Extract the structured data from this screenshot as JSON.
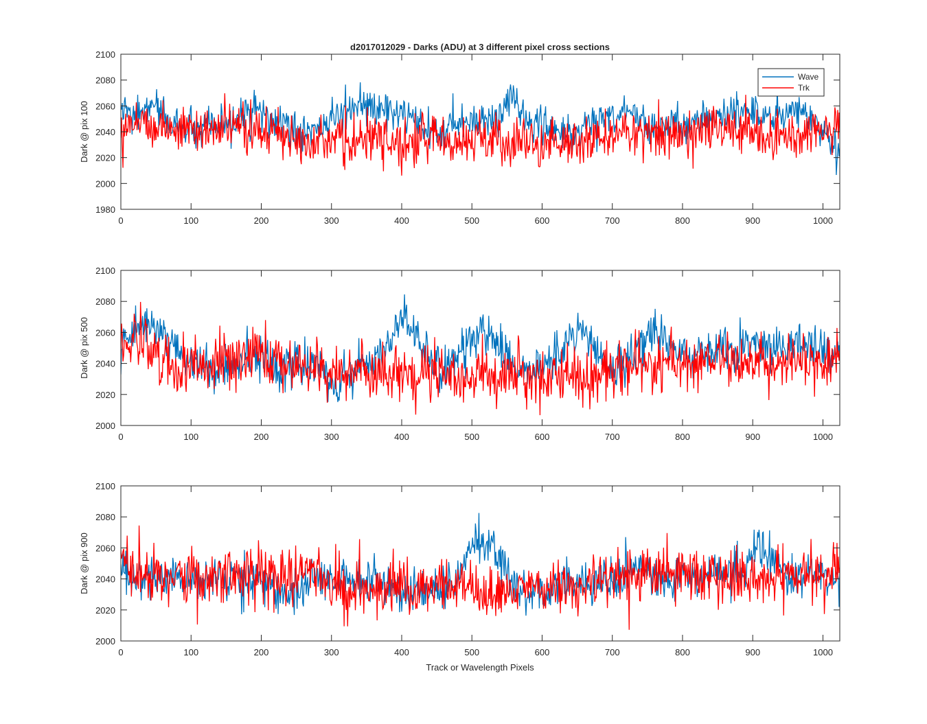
{
  "colors": {
    "wave": "#0072BD",
    "trk": "#FF0000",
    "axis": "#262626",
    "background": "#ffffff"
  },
  "figure": {
    "title": "d2017012029 - Darks (ADU) at 3 different pixel cross sections",
    "xlabel": "Track or Wavelength Pixels"
  },
  "legend": {
    "placement": "top-right of first panel",
    "entries": [
      "Wave",
      "Trk"
    ]
  },
  "chart_data": [
    {
      "type": "line",
      "title": "d2017012029 - Darks (ADU) at 3 different pixel cross sections",
      "xlabel": "",
      "ylabel": "Dark @ pix 100",
      "xlim": [
        0,
        1024
      ],
      "ylim": [
        1980,
        2100
      ],
      "xticks": [
        0,
        100,
        200,
        300,
        400,
        500,
        600,
        700,
        800,
        900,
        1000
      ],
      "yticks": [
        1980,
        2000,
        2020,
        2040,
        2060,
        2080,
        2100
      ],
      "grid": false,
      "legend": "top-right",
      "series": [
        {
          "name": "Wave",
          "color": "#0072BD",
          "x": [
            0,
            16,
            32,
            48,
            64,
            80,
            96,
            112,
            128,
            144,
            160,
            176,
            192,
            208,
            224,
            240,
            256,
            272,
            288,
            304,
            320,
            336,
            352,
            368,
            384,
            400,
            416,
            432,
            448,
            464,
            480,
            496,
            512,
            528,
            544,
            560,
            576,
            592,
            608,
            624,
            640,
            656,
            672,
            688,
            704,
            720,
            736,
            752,
            768,
            784,
            800,
            816,
            832,
            848,
            864,
            880,
            896,
            912,
            928,
            944,
            960,
            976,
            992,
            1008,
            1024
          ],
          "y": [
            2058,
            2050,
            2055,
            2062,
            2048,
            2046,
            2043,
            2040,
            2044,
            2041,
            2047,
            2052,
            2058,
            2050,
            2046,
            2042,
            2038,
            2040,
            2044,
            2050,
            2056,
            2062,
            2058,
            2054,
            2059,
            2052,
            2046,
            2042,
            2038,
            2040,
            2047,
            2050,
            2048,
            2050,
            2058,
            2066,
            2050,
            2046,
            2044,
            2040,
            2038,
            2043,
            2046,
            2050,
            2054,
            2058,
            2050,
            2046,
            2044,
            2046,
            2045,
            2047,
            2049,
            2052,
            2054,
            2058,
            2055,
            2052,
            2050,
            2054,
            2058,
            2052,
            2046,
            2036,
            2018
          ]
        },
        {
          "name": "Trk",
          "color": "#FF0000",
          "x": [
            0,
            16,
            32,
            48,
            64,
            80,
            96,
            112,
            128,
            144,
            160,
            176,
            192,
            208,
            224,
            240,
            256,
            272,
            288,
            304,
            320,
            336,
            352,
            368,
            384,
            400,
            416,
            432,
            448,
            464,
            480,
            496,
            512,
            528,
            544,
            560,
            576,
            592,
            608,
            624,
            640,
            656,
            672,
            688,
            704,
            720,
            736,
            752,
            768,
            784,
            800,
            816,
            832,
            848,
            864,
            880,
            896,
            912,
            928,
            944,
            960,
            976,
            992,
            1008,
            1024
          ],
          "y": [
            2042,
            2050,
            2048,
            2045,
            2044,
            2042,
            2043,
            2041,
            2040,
            2042,
            2043,
            2044,
            2042,
            2039,
            2038,
            2036,
            2038,
            2036,
            2034,
            2033,
            2032,
            2031,
            2034,
            2033,
            2032,
            2031,
            2034,
            2035,
            2034,
            2033,
            2034,
            2036,
            2034,
            2033,
            2032,
            2030,
            2032,
            2030,
            2031,
            2030,
            2032,
            2033,
            2034,
            2036,
            2038,
            2040,
            2039,
            2038,
            2040,
            2041,
            2040,
            2041,
            2042,
            2043,
            2043,
            2042,
            2040,
            2038,
            2036,
            2038,
            2036,
            2037,
            2038,
            2040,
            2046
          ]
        }
      ]
    },
    {
      "type": "line",
      "title": "",
      "xlabel": "",
      "ylabel": "Dark @ pix 500",
      "xlim": [
        0,
        1024
      ],
      "ylim": [
        2000,
        2100
      ],
      "xticks": [
        0,
        100,
        200,
        300,
        400,
        500,
        600,
        700,
        800,
        900,
        1000
      ],
      "yticks": [
        2000,
        2020,
        2040,
        2060,
        2080,
        2100
      ],
      "grid": false,
      "series": [
        {
          "name": "Wave",
          "color": "#0072BD",
          "x": [
            0,
            16,
            32,
            48,
            64,
            80,
            96,
            112,
            128,
            144,
            160,
            176,
            192,
            208,
            224,
            240,
            256,
            272,
            288,
            304,
            320,
            336,
            352,
            368,
            384,
            400,
            416,
            432,
            448,
            464,
            480,
            496,
            512,
            528,
            544,
            560,
            576,
            592,
            608,
            624,
            640,
            656,
            672,
            688,
            704,
            720,
            736,
            752,
            768,
            784,
            800,
            816,
            832,
            848,
            864,
            880,
            896,
            912,
            928,
            944,
            960,
            976,
            992,
            1008,
            1024
          ],
          "y": [
            2050,
            2058,
            2068,
            2064,
            2056,
            2050,
            2044,
            2040,
            2036,
            2038,
            2036,
            2040,
            2042,
            2044,
            2040,
            2038,
            2040,
            2038,
            2034,
            2024,
            2030,
            2036,
            2040,
            2046,
            2056,
            2068,
            2060,
            2048,
            2040,
            2038,
            2044,
            2050,
            2062,
            2060,
            2048,
            2040,
            2036,
            2034,
            2040,
            2048,
            2058,
            2062,
            2050,
            2040,
            2036,
            2040,
            2048,
            2056,
            2060,
            2052,
            2046,
            2044,
            2048,
            2052,
            2050,
            2046,
            2050,
            2055,
            2052,
            2048,
            2050,
            2052,
            2048,
            2046,
            2050
          ]
        },
        {
          "name": "Trk",
          "color": "#FF0000",
          "x": [
            0,
            16,
            32,
            48,
            64,
            80,
            96,
            112,
            128,
            144,
            160,
            176,
            192,
            208,
            224,
            240,
            256,
            272,
            288,
            304,
            320,
            336,
            352,
            368,
            384,
            400,
            416,
            432,
            448,
            464,
            480,
            496,
            512,
            528,
            544,
            560,
            576,
            592,
            608,
            624,
            640,
            656,
            672,
            688,
            704,
            720,
            736,
            752,
            768,
            784,
            800,
            816,
            832,
            848,
            864,
            880,
            896,
            912,
            928,
            944,
            960,
            976,
            992,
            1008,
            1024
          ],
          "y": [
            2050,
            2056,
            2052,
            2048,
            2044,
            2042,
            2040,
            2038,
            2040,
            2042,
            2040,
            2044,
            2048,
            2046,
            2042,
            2040,
            2038,
            2036,
            2034,
            2032,
            2034,
            2036,
            2034,
            2035,
            2034,
            2033,
            2034,
            2035,
            2034,
            2033,
            2032,
            2030,
            2032,
            2033,
            2034,
            2033,
            2030,
            2031,
            2032,
            2033,
            2034,
            2033,
            2034,
            2035,
            2036,
            2040,
            2042,
            2040,
            2038,
            2040,
            2041,
            2042,
            2043,
            2044,
            2042,
            2041,
            2040,
            2042,
            2041,
            2040,
            2041,
            2042,
            2040,
            2042,
            2044
          ]
        }
      ]
    },
    {
      "type": "line",
      "title": "",
      "xlabel": "Track or Wavelength Pixels",
      "ylabel": "Dark @ pix 900",
      "xlim": [
        0,
        1024
      ],
      "ylim": [
        2000,
        2100
      ],
      "xticks": [
        0,
        100,
        200,
        300,
        400,
        500,
        600,
        700,
        800,
        900,
        1000
      ],
      "yticks": [
        2000,
        2020,
        2040,
        2060,
        2080,
        2100
      ],
      "grid": false,
      "series": [
        {
          "name": "Wave",
          "color": "#0072BD",
          "x": [
            0,
            16,
            32,
            48,
            64,
            80,
            96,
            112,
            128,
            144,
            160,
            176,
            192,
            208,
            224,
            240,
            256,
            272,
            288,
            304,
            320,
            336,
            352,
            368,
            384,
            400,
            416,
            432,
            448,
            464,
            480,
            496,
            512,
            528,
            544,
            560,
            576,
            592,
            608,
            624,
            640,
            656,
            672,
            688,
            704,
            720,
            736,
            752,
            768,
            784,
            800,
            816,
            832,
            848,
            864,
            880,
            896,
            912,
            928,
            944,
            960,
            976,
            992,
            1008,
            1024
          ],
          "y": [
            2046,
            2042,
            2038,
            2040,
            2042,
            2040,
            2038,
            2040,
            2042,
            2040,
            2038,
            2040,
            2042,
            2038,
            2034,
            2030,
            2034,
            2040,
            2042,
            2040,
            2038,
            2036,
            2038,
            2036,
            2034,
            2030,
            2032,
            2034,
            2032,
            2036,
            2040,
            2058,
            2066,
            2058,
            2048,
            2036,
            2030,
            2028,
            2032,
            2034,
            2036,
            2038,
            2034,
            2036,
            2040,
            2044,
            2046,
            2044,
            2042,
            2040,
            2044,
            2042,
            2040,
            2042,
            2044,
            2046,
            2050,
            2060,
            2052,
            2044,
            2040,
            2042,
            2044,
            2040,
            2042
          ]
        },
        {
          "name": "Trk",
          "color": "#FF0000",
          "x": [
            0,
            16,
            32,
            48,
            64,
            80,
            96,
            112,
            128,
            144,
            160,
            176,
            192,
            208,
            224,
            240,
            256,
            272,
            288,
            304,
            320,
            336,
            352,
            368,
            384,
            400,
            416,
            432,
            448,
            464,
            480,
            496,
            512,
            528,
            544,
            560,
            576,
            592,
            608,
            624,
            640,
            656,
            672,
            688,
            704,
            720,
            736,
            752,
            768,
            784,
            800,
            816,
            832,
            848,
            864,
            880,
            896,
            912,
            928,
            944,
            960,
            976,
            992,
            1008,
            1024
          ],
          "y": [
            2048,
            2046,
            2044,
            2042,
            2040,
            2042,
            2040,
            2041,
            2042,
            2040,
            2043,
            2046,
            2044,
            2042,
            2041,
            2040,
            2044,
            2042,
            2040,
            2038,
            2036,
            2035,
            2034,
            2036,
            2034,
            2033,
            2032,
            2033,
            2034,
            2033,
            2034,
            2033,
            2032,
            2031,
            2033,
            2034,
            2032,
            2030,
            2032,
            2033,
            2034,
            2035,
            2036,
            2038,
            2040,
            2042,
            2044,
            2043,
            2042,
            2041,
            2042,
            2043,
            2042,
            2041,
            2040,
            2041,
            2042,
            2041,
            2040,
            2041,
            2042,
            2040,
            2041,
            2042,
            2050
          ]
        }
      ]
    }
  ]
}
